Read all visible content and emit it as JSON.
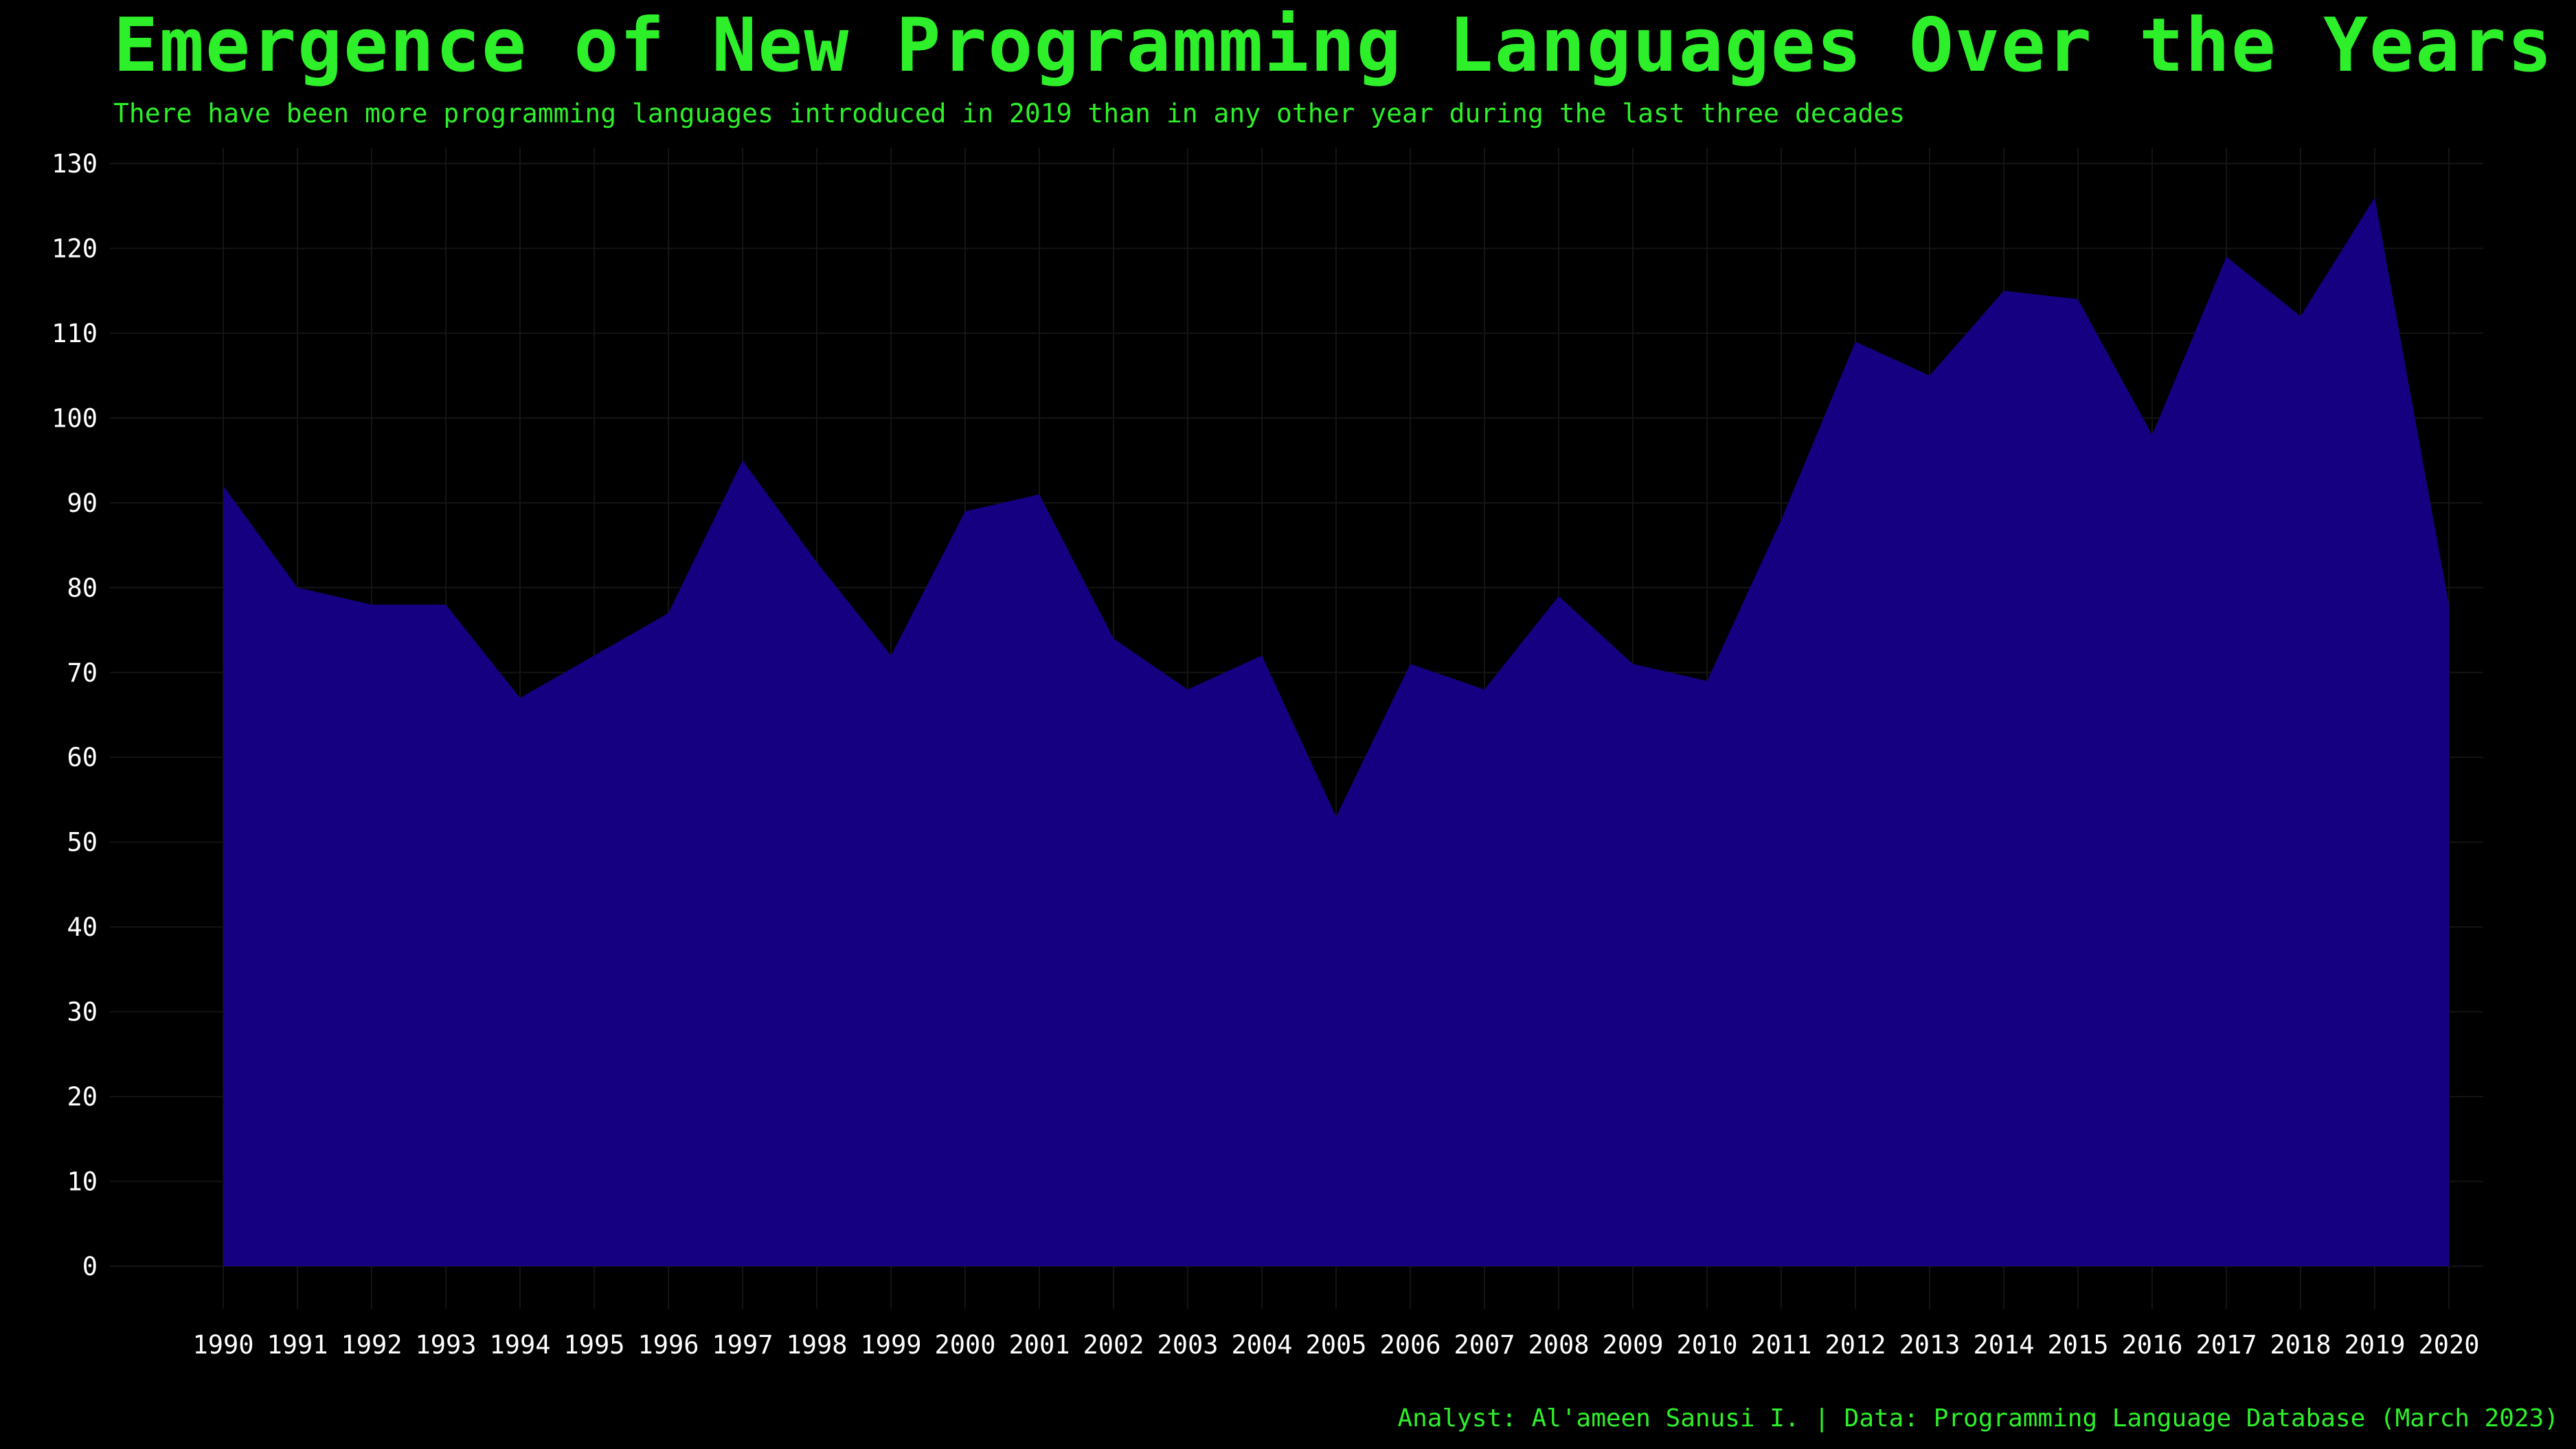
{
  "colors": {
    "background": "#000000",
    "title_text": "#2ef02a",
    "area_fill": "#140080",
    "tick_text": "#ffffff",
    "grid": "#141414"
  },
  "header": {
    "title": "Emergence of New Programming Languages Over the Years",
    "subtitle": "There have been more programming languages introduced in 2019 than in any other year during the last three decades"
  },
  "footer": {
    "caption": "Analyst: Al'ameen Sanusi I. | Data: Programming Language Database (March 2023)"
  },
  "chart_data": {
    "type": "area",
    "title": "Emergence of New Programming Languages Over the Years",
    "subtitle": "There have been more programming languages introduced in 2019 than in any other year during the last three decades",
    "xlabel": "",
    "ylabel": "",
    "x": [
      "1990",
      "1991",
      "1992",
      "1993",
      "1994",
      "1995",
      "1996",
      "1997",
      "1998",
      "1999",
      "2000",
      "2001",
      "2002",
      "2003",
      "2004",
      "2005",
      "2006",
      "2007",
      "2008",
      "2009",
      "2010",
      "2011",
      "2012",
      "2013",
      "2014",
      "2015",
      "2016",
      "2017",
      "2018",
      "2019",
      "2020"
    ],
    "series": [
      {
        "values": [
          92,
          80,
          78,
          78,
          67,
          72,
          77,
          95,
          83,
          72,
          89,
          91,
          74,
          68,
          72,
          53,
          71,
          68,
          79,
          71,
          69,
          88,
          109,
          105,
          115,
          114,
          98,
          119,
          112,
          126,
          78
        ]
      }
    ],
    "yticks": [
      0,
      10,
      20,
      30,
      40,
      50,
      60,
      70,
      80,
      90,
      100,
      110,
      120,
      130
    ],
    "ylim": [
      0,
      130
    ],
    "grid": true,
    "legend": "none"
  }
}
